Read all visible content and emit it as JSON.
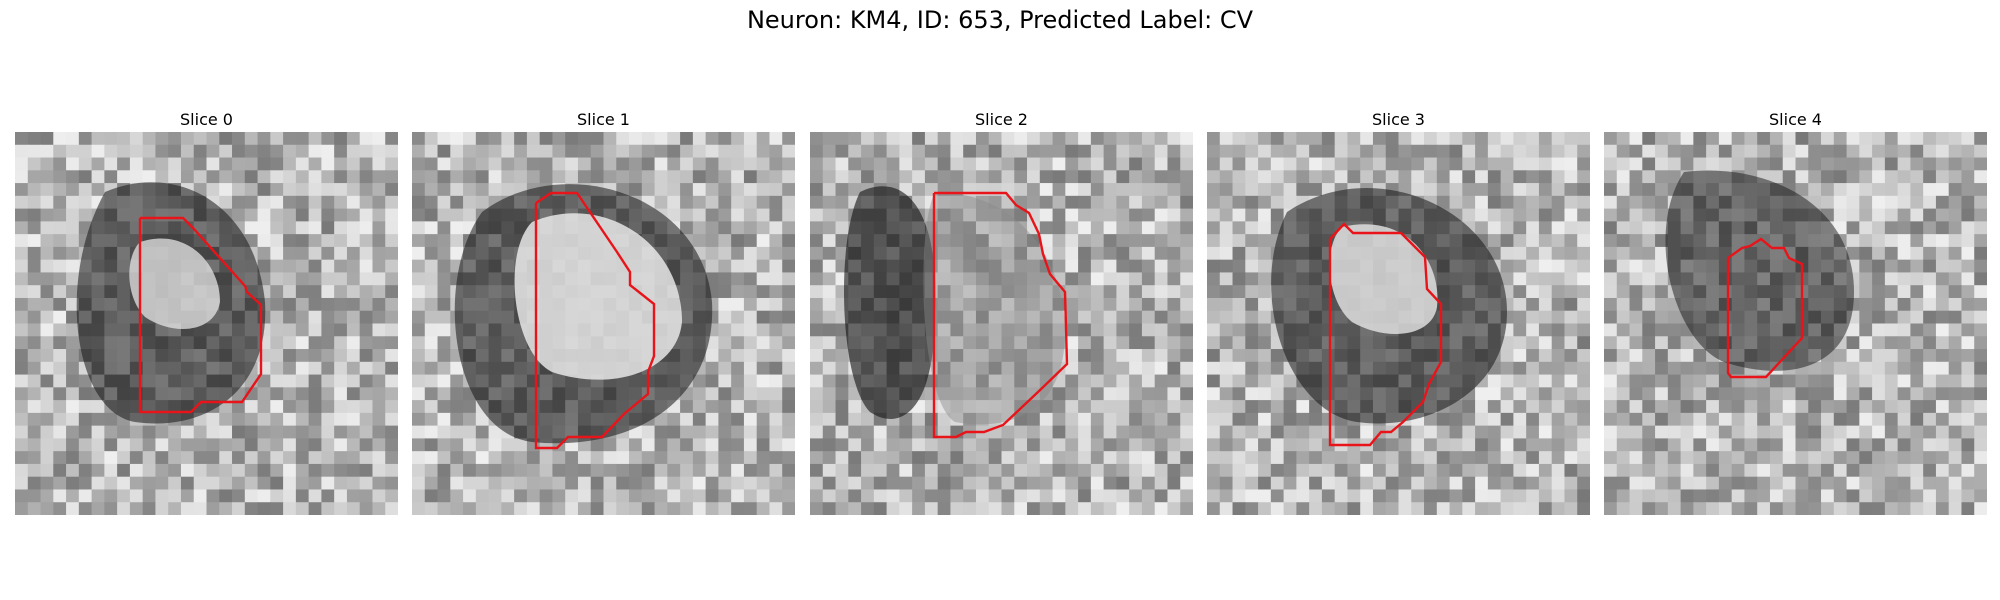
{
  "figure": {
    "title": "Neuron: KM4, ID: 653, Predicted Label: CV",
    "outline_color": "#e8141a",
    "colormap": "gray",
    "slices": [
      {
        "title": "Slice 0"
      },
      {
        "title": "Slice 1"
      },
      {
        "title": "Slice 2"
      },
      {
        "title": "Slice 3"
      },
      {
        "title": "Slice 4"
      }
    ]
  }
}
